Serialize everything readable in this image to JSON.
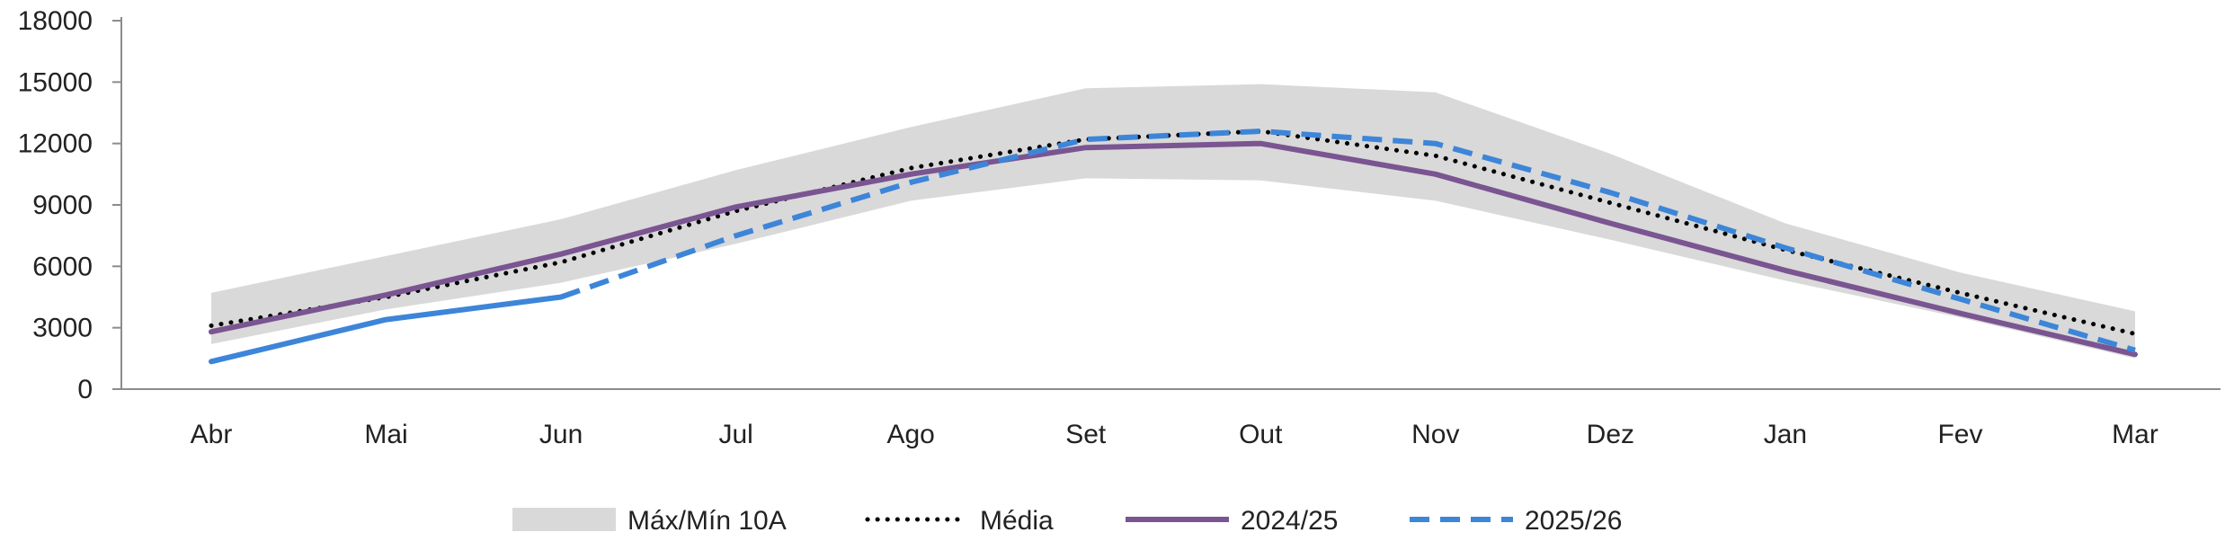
{
  "chart_data": {
    "type": "line",
    "title": "",
    "xlabel": "",
    "ylabel": "",
    "categories": [
      "Abr",
      "Mai",
      "Jun",
      "Jul",
      "Ago",
      "Set",
      "Out",
      "Nov",
      "Dez",
      "Jan",
      "Fev",
      "Mar"
    ],
    "ylim": [
      0,
      18000
    ],
    "yticks": [
      0,
      3000,
      6000,
      9000,
      12000,
      15000,
      18000
    ],
    "grid": false,
    "legend_position": "bottom",
    "band": {
      "name": "Máx/Mín 10A",
      "color": "#d9d9d9",
      "max": [
        4700,
        6500,
        8300,
        10700,
        12800,
        14700,
        14900,
        14500,
        11500,
        8100,
        5700,
        3800
      ],
      "min": [
        2200,
        3900,
        5200,
        7100,
        9200,
        10300,
        10200,
        9200,
        7300,
        5300,
        3500,
        1500
      ]
    },
    "series": [
      {
        "name": "Média",
        "color": "#000000",
        "style": "dotted",
        "values": [
          3100,
          4500,
          6200,
          8700,
          10800,
          12200,
          12600,
          11400,
          9100,
          6800,
          4700,
          2700
        ]
      },
      {
        "name": "2024/25",
        "color": "#7a5591",
        "style": "solid",
        "values": [
          2800,
          4600,
          6600,
          8900,
          10500,
          11800,
          12000,
          10500,
          8100,
          5800,
          3700,
          1700
        ]
      },
      {
        "name": "2025/26",
        "color": "#3d85d8",
        "style": "solid-then-dashed",
        "values": [
          1350,
          3400,
          4500,
          7500,
          10100,
          12200,
          12600,
          12000,
          9600,
          6900,
          4400,
          1900
        ]
      }
    ]
  }
}
